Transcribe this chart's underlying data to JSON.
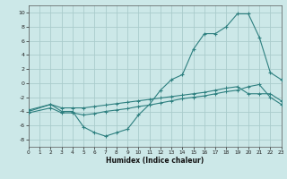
{
  "xlabel": "Humidex (Indice chaleur)",
  "bg_color": "#cce8e8",
  "grid_color": "#aacccc",
  "line_color": "#2d7f7f",
  "xlim": [
    0,
    23
  ],
  "ylim": [
    -9,
    11
  ],
  "xtick_vals": [
    0,
    1,
    2,
    3,
    4,
    5,
    6,
    7,
    8,
    9,
    10,
    11,
    12,
    13,
    14,
    15,
    16,
    17,
    18,
    19,
    20,
    21,
    22,
    23
  ],
  "ytick_vals": [
    -8,
    -6,
    -4,
    -2,
    0,
    2,
    4,
    6,
    8,
    10
  ],
  "line1_x": [
    0,
    2,
    3,
    4,
    5,
    6,
    7,
    8,
    9,
    10,
    11,
    12,
    13,
    14,
    15,
    16,
    17,
    18,
    19,
    20,
    21,
    22,
    23
  ],
  "line1_y": [
    -4.0,
    -3.0,
    -4.0,
    -4.0,
    -6.2,
    -7.0,
    -7.5,
    -7.0,
    -6.5,
    -4.5,
    -3.0,
    -1.0,
    0.5,
    1.2,
    4.8,
    7.0,
    7.0,
    8.0,
    9.8,
    9.8,
    6.5,
    1.5,
    0.5
  ],
  "line2_x": [
    0,
    2,
    3,
    4,
    5,
    6,
    7,
    8,
    9,
    10,
    11,
    12,
    13,
    14,
    15,
    16,
    17,
    18,
    19,
    20,
    21,
    22,
    23
  ],
  "line2_y": [
    -3.8,
    -3.0,
    -3.5,
    -3.5,
    -3.5,
    -3.3,
    -3.1,
    -2.9,
    -2.7,
    -2.5,
    -2.3,
    -2.1,
    -1.9,
    -1.7,
    -1.5,
    -1.3,
    -1.0,
    -0.7,
    -0.5,
    -1.5,
    -1.5,
    -1.5,
    -2.5
  ],
  "line3_x": [
    0,
    2,
    3,
    4,
    5,
    6,
    7,
    8,
    9,
    10,
    11,
    12,
    13,
    14,
    15,
    16,
    17,
    18,
    19,
    20,
    21,
    22,
    23
  ],
  "line3_y": [
    -4.2,
    -3.5,
    -4.2,
    -4.2,
    -4.5,
    -4.3,
    -4.0,
    -3.8,
    -3.6,
    -3.3,
    -3.1,
    -2.8,
    -2.5,
    -2.2,
    -2.0,
    -1.8,
    -1.5,
    -1.2,
    -1.0,
    -0.5,
    -0.2,
    -2.0,
    -3.0
  ]
}
